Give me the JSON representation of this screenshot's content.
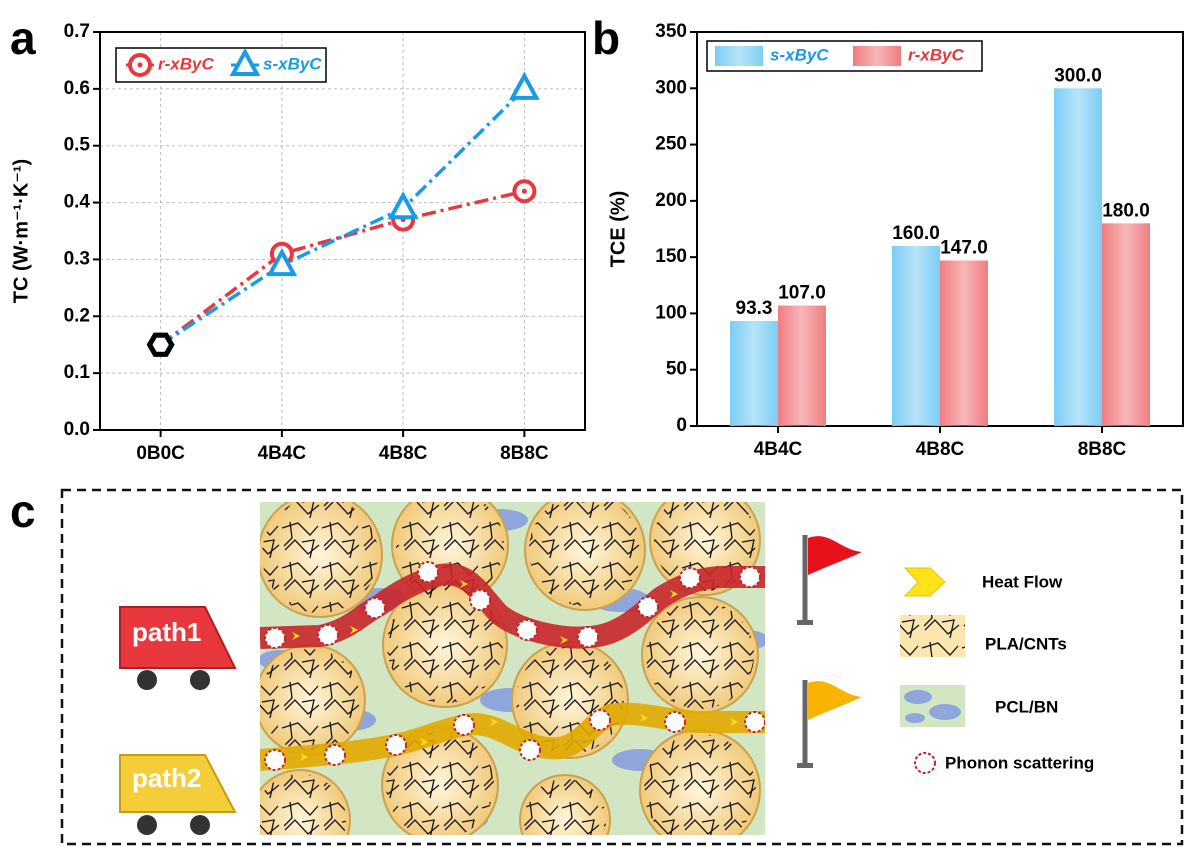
{
  "panel_labels": [
    "a",
    "b",
    "c"
  ],
  "chart_data": [
    {
      "type": "line",
      "y_label": "TC (W·m⁻¹·K⁻¹)",
      "categories": [
        "0B0C",
        "4B4C",
        "4B8C",
        "8B8C"
      ],
      "series": [
        {
          "name": "r-xByC",
          "color": "#e8383d",
          "marker": "circle",
          "values": [
            0.15,
            0.31,
            0.37,
            0.42
          ]
        },
        {
          "name": "s-xByC",
          "color": "#1a9be6",
          "marker": "triangle",
          "values": [
            0.15,
            0.29,
            0.39,
            0.6
          ]
        }
      ],
      "start_marker_color": "#000000",
      "ylim": [
        0,
        0.7
      ],
      "yticks": [
        {
          "value": 0,
          "label": "0.0"
        },
        0.1,
        0.2,
        0.3,
        0.4,
        0.5,
        0.6,
        0.7
      ],
      "grid": true,
      "legend": "top-left"
    },
    {
      "type": "bar",
      "y_label": "TCE (%)",
      "categories": [
        "4B4C",
        "4B8C",
        "8B8C"
      ],
      "series": [
        {
          "name": "s-xByC",
          "color": "#7ccdf5",
          "values": [
            93.3,
            160,
            300
          ],
          "value_labels": [
            "93.3",
            "160.0",
            "300.0"
          ]
        },
        {
          "name": "r-xByC",
          "color": "#f07c80",
          "values": [
            107,
            147,
            180
          ],
          "value_labels": [
            "107.0",
            "147.0",
            "180.0"
          ]
        }
      ],
      "ylim": [
        0,
        350
      ],
      "yticks": [
        0,
        50,
        100,
        150,
        200,
        250,
        300,
        350
      ],
      "grid": false,
      "legend": "top-left"
    }
  ],
  "diagram": {
    "carts": [
      "path1",
      "path2"
    ],
    "legend": [
      "Heat Flow",
      "PLA/CNTs",
      "PCL/BN",
      "Phonon scattering"
    ]
  }
}
